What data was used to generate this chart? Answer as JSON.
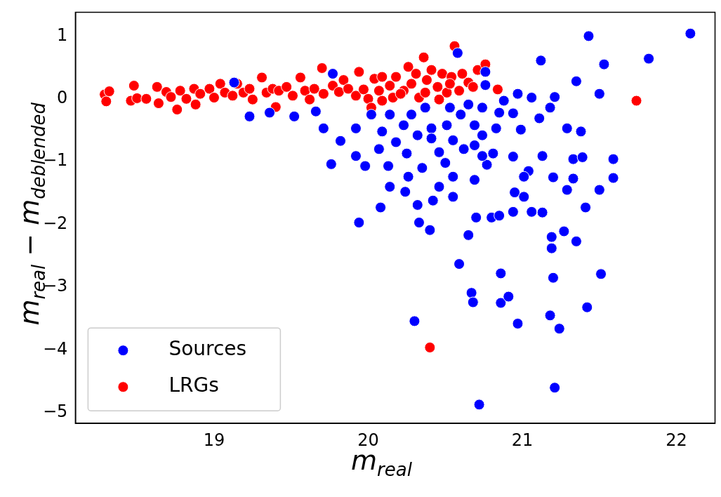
{
  "chart_data": {
    "type": "scatter",
    "xlabel": "m$_{real}$",
    "ylabel": "m$_{real}$ − m$_{deblended}$",
    "xlim": [
      18.1,
      22.25
    ],
    "ylim": [
      -5.17,
      1.38
    ],
    "xticks": [
      19,
      20,
      21,
      22
    ],
    "yticks": [
      -5,
      -4,
      -3,
      -2,
      -1,
      0,
      1
    ],
    "grid": false,
    "legend": "bottom left",
    "marker": "circle",
    "series": [
      {
        "name": "Sources",
        "color": "#0000ff",
        "x": [
          22.09,
          21.43,
          21.82,
          21.53,
          21.12,
          21.35,
          21.5,
          21.21,
          21.59,
          21.59,
          21.5,
          21.51,
          21.42,
          21.35,
          21.41,
          21.27,
          21.19,
          21.19,
          21.2,
          21.18,
          21.24,
          21.21,
          20.72,
          20.97,
          20.86,
          20.86,
          20.91,
          20.67,
          20.68,
          20.3,
          20.59,
          20.4,
          20.33,
          19.94,
          20.08,
          20.24,
          20.32,
          20.42,
          20.55,
          20.65,
          20.7,
          20.8,
          20.85,
          20.94,
          21.06,
          21.13,
          20.95,
          21.01,
          21.2,
          21.29,
          21.33,
          21.33,
          21.38,
          21.29,
          21.39,
          21.13,
          21.04,
          21.01,
          20.94,
          20.81,
          20.77,
          20.69,
          20.55,
          20.5,
          20.25,
          20.13,
          19.98,
          19.76,
          19.82,
          19.92,
          19.71,
          19.92,
          20.07,
          20.18,
          20.26,
          20.35,
          20.46,
          20.14,
          20.55,
          20.74,
          20.83,
          20.99,
          21.11,
          21.18,
          21.06,
          20.94,
          20.85,
          20.76,
          20.69,
          20.6,
          20.51,
          20.41,
          20.32,
          20.23,
          20.14,
          20.09,
          20.02,
          20.28,
          20.37,
          20.53,
          20.65,
          20.74,
          20.88,
          20.97,
          20.58,
          20.76,
          19.23,
          19.36,
          19.52,
          19.66,
          19.13,
          19.77,
          20.41,
          20.62,
          20.46,
          20.74,
          20.69
        ],
        "values": [
          1.04,
          1.0,
          0.64,
          0.55,
          0.61,
          0.28,
          0.08,
          0.03,
          -0.96,
          -1.26,
          -1.45,
          -2.79,
          -3.32,
          -2.27,
          -1.73,
          -2.11,
          -2.2,
          -2.38,
          -2.85,
          -3.45,
          -3.66,
          -4.6,
          -4.87,
          -3.58,
          -2.78,
          -3.25,
          -3.15,
          -3.09,
          -3.24,
          -3.54,
          -2.63,
          -2.09,
          -1.97,
          -1.97,
          -1.73,
          -1.48,
          -1.69,
          -1.62,
          -1.56,
          -2.17,
          -1.89,
          -1.89,
          -1.86,
          -1.8,
          -1.8,
          -1.81,
          -1.49,
          -1.56,
          -1.25,
          -1.45,
          -1.27,
          -0.96,
          -0.52,
          -0.47,
          -0.93,
          -0.91,
          -1.15,
          -1.24,
          -0.92,
          -0.87,
          -1.05,
          -1.29,
          -1.24,
          -1.02,
          -0.87,
          -1.07,
          -1.07,
          -1.04,
          -0.67,
          -0.91,
          -0.47,
          -0.47,
          -0.8,
          -0.69,
          -1.24,
          -1.1,
          -1.4,
          -1.4,
          -0.66,
          -0.58,
          -0.47,
          -0.49,
          -0.31,
          -0.14,
          0.02,
          -0.23,
          -0.22,
          0.22,
          -0.42,
          -0.25,
          -0.42,
          -0.47,
          -0.58,
          -0.42,
          -0.25,
          -0.52,
          -0.25,
          -0.25,
          -0.14,
          -0.14,
          -0.09,
          -0.14,
          -0.03,
          0.08,
          0.73,
          0.43,
          -0.28,
          -0.22,
          -0.28,
          -0.2,
          0.26,
          0.4,
          -0.63,
          -0.8,
          -0.85,
          -0.91,
          -0.74
        ]
      },
      {
        "name": "LRGs",
        "color": "#ff0000",
        "x": [
          18.29,
          18.3,
          18.32,
          18.46,
          18.48,
          18.5,
          18.56,
          18.63,
          18.64,
          18.69,
          18.72,
          18.76,
          18.78,
          18.82,
          18.87,
          18.88,
          18.91,
          18.97,
          19.0,
          19.04,
          19.07,
          19.12,
          19.15,
          19.19,
          19.23,
          19.25,
          19.31,
          19.34,
          19.4,
          19.38,
          19.42,
          19.47,
          19.51,
          19.56,
          19.59,
          19.62,
          19.65,
          19.7,
          19.71,
          19.77,
          19.81,
          19.84,
          19.87,
          19.92,
          19.94,
          19.97,
          20.0,
          20.02,
          20.04,
          20.07,
          20.09,
          20.14,
          20.16,
          20.18,
          20.23,
          20.26,
          20.28,
          20.31,
          20.33,
          20.36,
          20.38,
          20.41,
          20.45,
          20.48,
          20.51,
          20.54,
          20.56,
          20.59,
          20.61,
          20.65,
          20.68,
          20.71,
          20.76,
          20.84,
          21.74,
          20.4,
          20.09,
          20.21,
          20.46,
          20.37,
          20.53
        ],
        "values": [
          0.07,
          -0.04,
          0.12,
          -0.03,
          0.21,
          0.01,
          0.0,
          0.19,
          -0.07,
          0.11,
          0.03,
          -0.17,
          0.13,
          0.0,
          0.16,
          -0.09,
          0.08,
          0.16,
          0.02,
          0.24,
          0.1,
          0.05,
          0.24,
          0.1,
          0.16,
          -0.01,
          0.34,
          0.1,
          -0.13,
          0.16,
          0.13,
          0.19,
          0.05,
          0.34,
          0.13,
          -0.01,
          0.16,
          0.49,
          0.08,
          0.21,
          0.11,
          0.3,
          0.16,
          0.05,
          0.43,
          0.15,
          0.0,
          -0.14,
          0.32,
          0.13,
          0.35,
          0.21,
          0.02,
          0.35,
          0.13,
          0.51,
          0.24,
          0.4,
          0.02,
          0.66,
          0.3,
          0.46,
          0.19,
          0.4,
          0.1,
          0.35,
          0.84,
          0.13,
          0.4,
          0.26,
          0.19,
          0.46,
          0.55,
          0.15,
          -0.03,
          -3.96,
          -0.03,
          0.08,
          -0.01,
          0.1,
          0.24
        ]
      }
    ]
  }
}
